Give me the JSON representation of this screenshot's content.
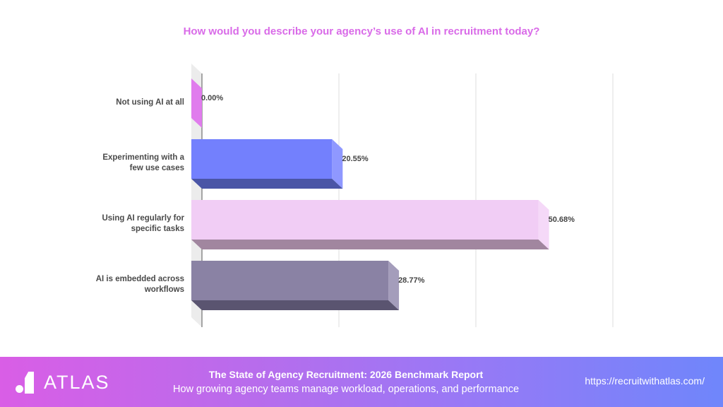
{
  "chart_data": {
    "type": "bar",
    "orientation": "horizontal",
    "style": "3d",
    "title": "How would you describe your agency’s use of AI in recruitment today?",
    "categories": [
      "Not using AI at all",
      "Experimenting with a few use cases",
      "Using AI regularly for specific tasks",
      "AI is embedded across workflows"
    ],
    "category_lines": [
      [
        "Not using AI at all"
      ],
      [
        "Experimenting with a",
        "few use cases"
      ],
      [
        "Using AI regularly for",
        "specific tasks"
      ],
      [
        "AI is embedded across",
        "workflows"
      ]
    ],
    "values": [
      0.0,
      20.55,
      50.68,
      28.77
    ],
    "value_labels": [
      "0.00%",
      "20.55%",
      "50.68%",
      "28.77%"
    ],
    "colors": [
      "#e07ced",
      "#7380fd",
      "#f1cdf5",
      "#8a82a4"
    ],
    "side_colors": [
      "#e990f2",
      "#8f98ff",
      "#f5d9f8",
      "#a49dbb"
    ],
    "bottom_colors": [
      "#b45bc2",
      "#4a55a6",
      "#a1869f",
      "#5a5470"
    ],
    "xlabel": "",
    "ylabel": "",
    "xlim": [
      0,
      60
    ],
    "gridlines": [
      20,
      40,
      60
    ],
    "grid": true,
    "legend": null
  },
  "footer": {
    "brand": "ATLAS",
    "title": "The State of Agency Recruitment: 2026 Benchmark Report",
    "subtitle": "How growing agency teams manage workload, operations, and performance",
    "url": "https://recruitwithatlas.com/"
  }
}
